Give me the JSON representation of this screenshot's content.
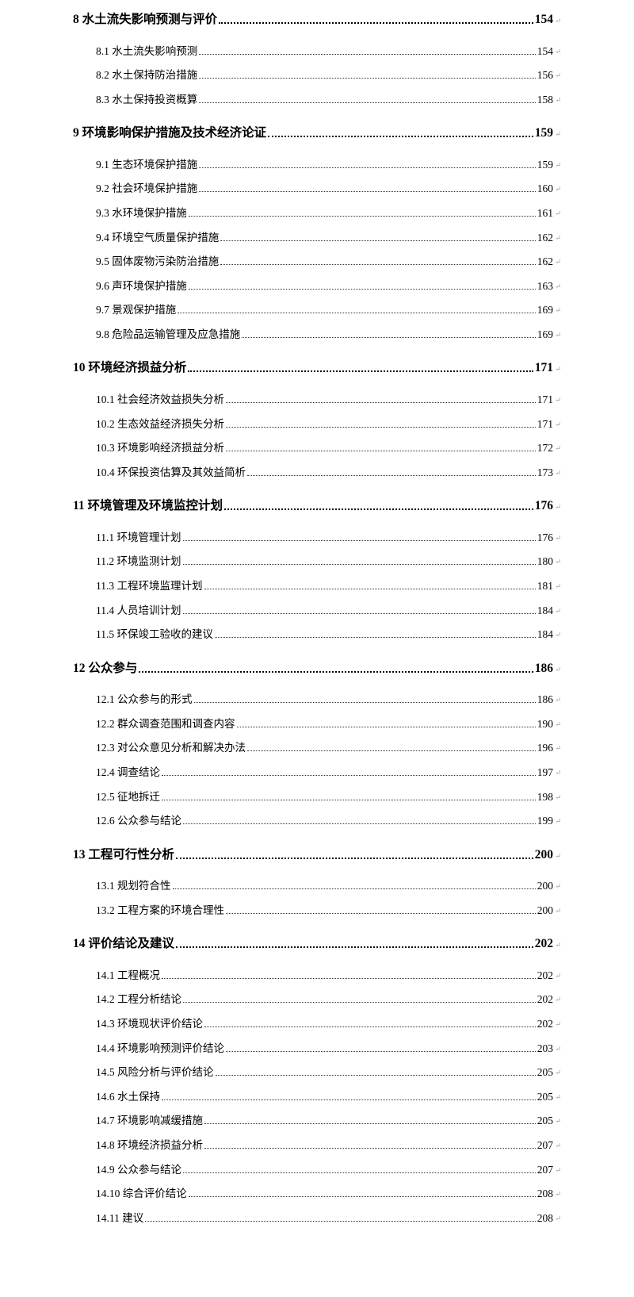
{
  "toc": [
    {
      "title": "8 水土流失影响预测与评价",
      "page": "154",
      "items": [
        {
          "title": "8.1 水土流失影响预测",
          "page": "154"
        },
        {
          "title": "8.2 水土保持防治措施",
          "page": "156"
        },
        {
          "title": "8.3 水土保持投资概算",
          "page": "158"
        }
      ]
    },
    {
      "title": "9 环境影响保护措施及技术经济论证",
      "page": "159",
      "items": [
        {
          "title": "9.1 生态环境保护措施",
          "page": "159"
        },
        {
          "title": "9.2 社会环境保护措施",
          "page": "160"
        },
        {
          "title": "9.3 水环境保护措施",
          "page": "161"
        },
        {
          "title": "9.4 环境空气质量保护措施",
          "page": "162"
        },
        {
          "title": "9.5 固体废物污染防治措施",
          "page": "162"
        },
        {
          "title": "9.6 声环境保护措施",
          "page": "163"
        },
        {
          "title": "9.7 景观保护措施",
          "page": "169"
        },
        {
          "title": "9.8 危险品运输管理及应急措施",
          "page": "169"
        }
      ]
    },
    {
      "title": "10 环境经济损益分析",
      "page": "171",
      "items": [
        {
          "title": "10.1 社会经济效益损失分析",
          "page": "171"
        },
        {
          "title": "10.2 生态效益经济损失分析",
          "page": "171"
        },
        {
          "title": "10.3 环境影响经济损益分析",
          "page": "172"
        },
        {
          "title": "10.4 环保投资估算及其效益简析",
          "page": "173"
        }
      ]
    },
    {
      "title": "11 环境管理及环境监控计划",
      "page": "176",
      "items": [
        {
          "title": "11.1  环境管理计划",
          "page": "176"
        },
        {
          "title": "11.2 环境监测计划",
          "page": "180"
        },
        {
          "title": "11.3 工程环境监理计划",
          "page": "181"
        },
        {
          "title": "11.4 人员培训计划",
          "page": "184"
        },
        {
          "title": "11.5 环保竣工验收的建议",
          "page": "184"
        }
      ]
    },
    {
      "title": "12  公众参与",
      "page": "186",
      "items": [
        {
          "title": "12.1 公众参与的形式",
          "page": "186"
        },
        {
          "title": "12.2 群众调查范围和调查内容",
          "page": "190"
        },
        {
          "title": "12.3 对公众意见分析和解决办法",
          "page": "196"
        },
        {
          "title": "12.4 调查结论",
          "page": "197"
        },
        {
          "title": "12.5 征地拆迁",
          "page": "198"
        },
        {
          "title": "12.6 公众参与结论",
          "page": "199"
        }
      ]
    },
    {
      "title": "13  工程可行性分析",
      "page": "200",
      "items": [
        {
          "title": "13.1 规划符合性",
          "page": "200"
        },
        {
          "title": "13.2 工程方案的环境合理性",
          "page": "200"
        }
      ]
    },
    {
      "title": "14 评价结论及建议",
      "page": "202",
      "items": [
        {
          "title": "14.1 工程概况",
          "page": "202"
        },
        {
          "title": "14.2 工程分析结论",
          "page": "202"
        },
        {
          "title": "14.3 环境现状评价结论",
          "page": "202"
        },
        {
          "title": "14.4 环境影响预测评价结论",
          "page": "203"
        },
        {
          "title": "14.5 风险分析与评价结论",
          "page": "205"
        },
        {
          "title": "14.6 水土保持",
          "page": "205"
        },
        {
          "title": "14.7 环境影响减缓措施",
          "page": "205"
        },
        {
          "title": "14.8 环境经济损益分析",
          "page": "207"
        },
        {
          "title": "14.9 公众参与结论",
          "page": "207"
        },
        {
          "title": "14.10 综合评价结论",
          "page": "208"
        },
        {
          "title": "14.11 建议",
          "page": "208"
        }
      ]
    }
  ],
  "paragraph_mark": "↵"
}
